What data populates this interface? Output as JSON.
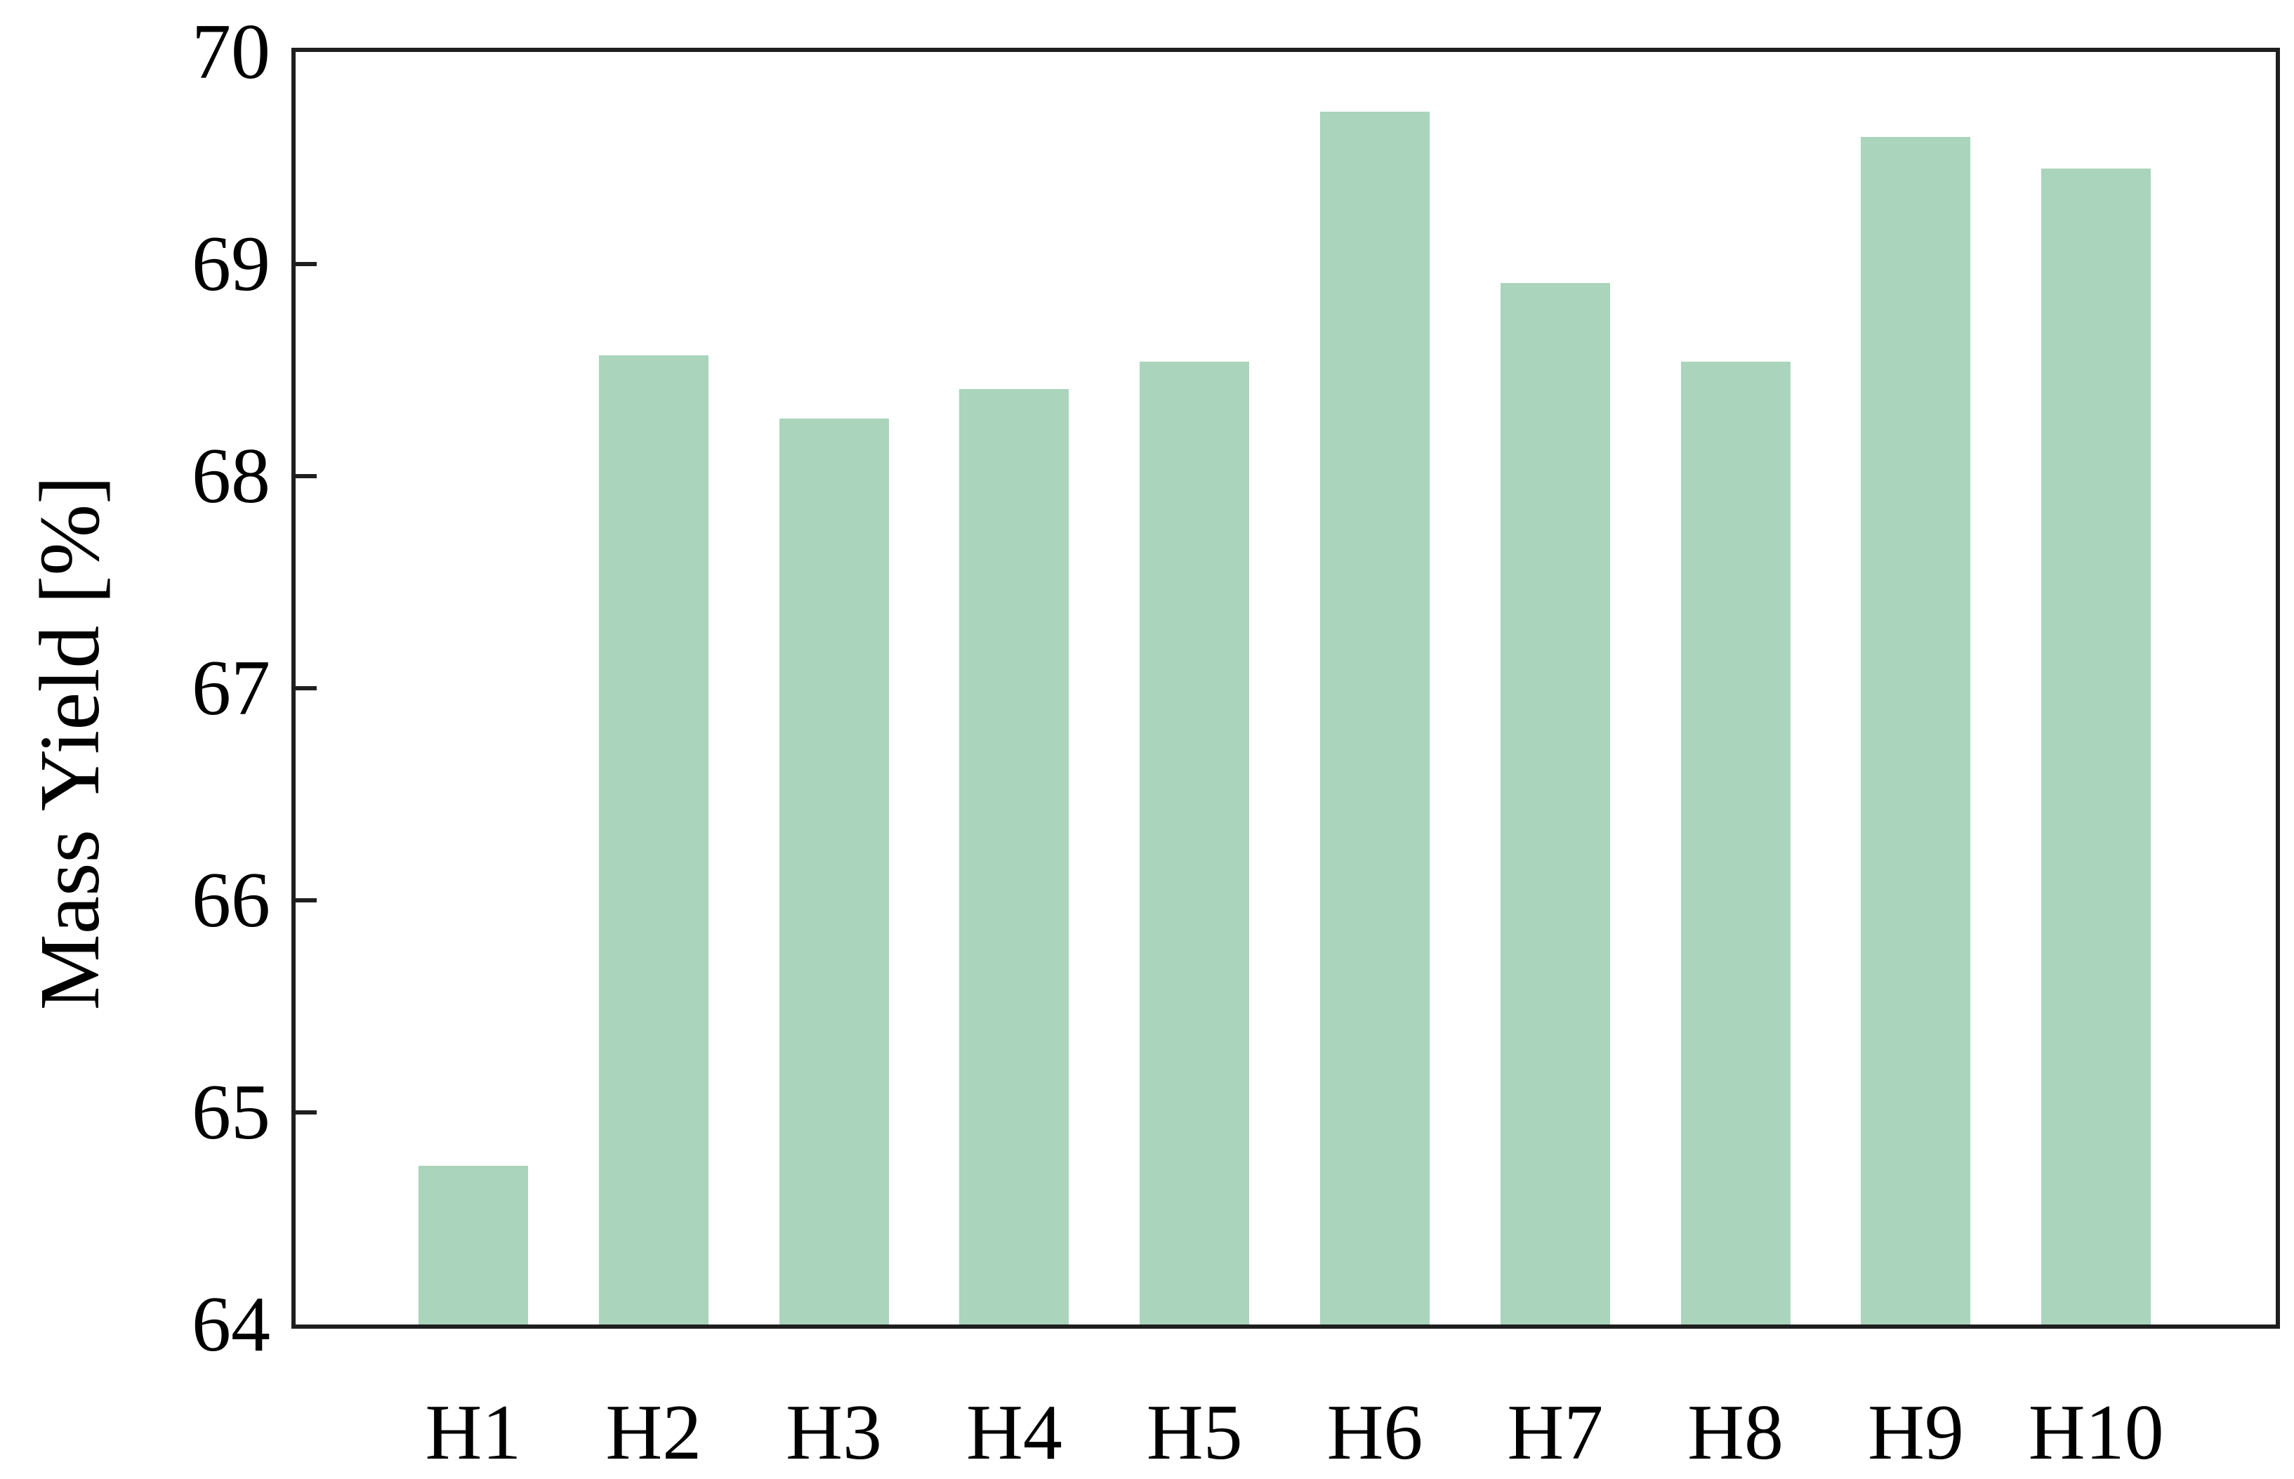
{
  "chart_data": {
    "type": "bar",
    "title": "",
    "categories": [
      "H1",
      "H2",
      "H3",
      "H4",
      "H5",
      "H6",
      "H7",
      "H8",
      "H9",
      "H10"
    ],
    "values": [
      64.75,
      68.57,
      68.27,
      68.41,
      68.54,
      69.72,
      68.91,
      68.54,
      69.6,
      69.45
    ],
    "xlabel": "",
    "ylabel": "Mass Yield [%]",
    "ylim": [
      64,
      70
    ],
    "yticks": [
      64,
      65,
      66,
      67,
      68,
      69,
      70
    ],
    "grid": false,
    "legend": false,
    "bar_color": "#aad4bb",
    "axis_color": "#1f1f1f",
    "text_color": "#000000"
  }
}
